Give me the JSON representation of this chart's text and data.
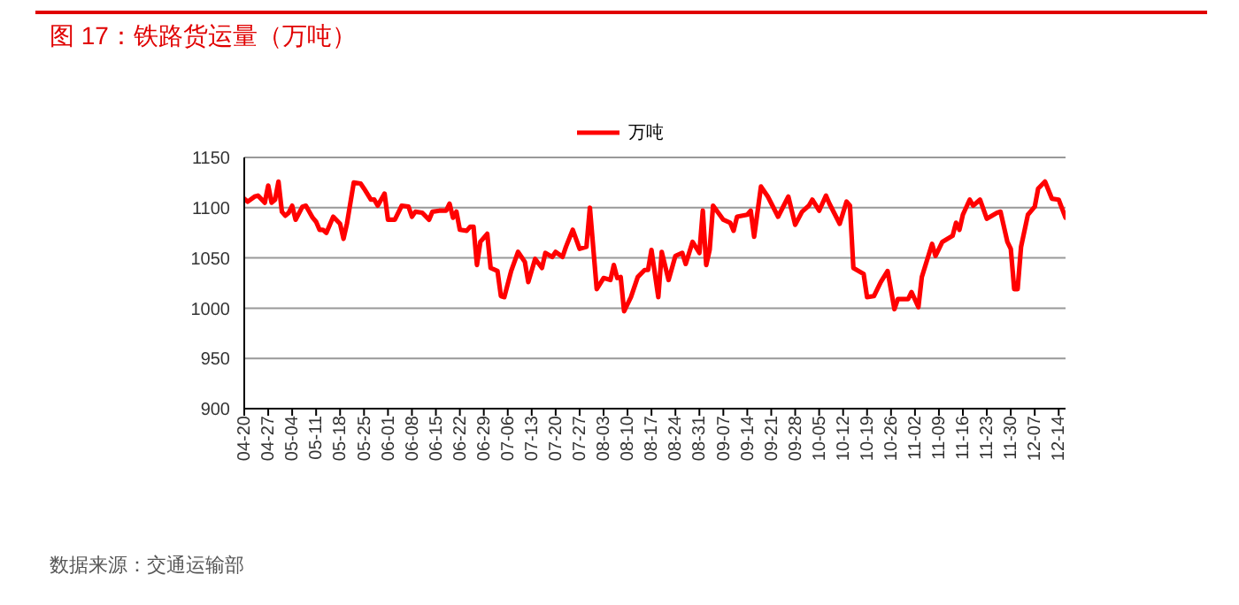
{
  "chart_data": {
    "type": "line",
    "title": "图 17：铁路货运量（万吨）",
    "annotations": [
      "数据来源：交通运输部"
    ],
    "x": [
      "--04-20",
      "--04-21",
      "--04-23",
      "--04-24",
      "--04-26",
      "--04-27",
      "--04-28",
      "--04-29",
      "--04-30",
      "--05-01",
      "--05-02",
      "--05-03",
      "--05-04",
      "--05-05",
      "--05-07",
      "--05-08",
      "--05-10",
      "--05-11",
      "--05-12",
      "--05-13",
      "--05-14",
      "--05-16",
      "--05-18",
      "--05-19",
      "--05-20",
      "--05-22",
      "--05-24",
      "--05-25",
      "--05-27",
      "--05-28",
      "--05-29",
      "--05-31",
      "--06-01",
      "--06-03",
      "--06-05",
      "--06-07",
      "--06-08",
      "--06-09",
      "--06-11",
      "--06-13",
      "--06-14",
      "--06-16",
      "--06-18",
      "--06-19",
      "--06-20",
      "--06-21",
      "--06-22",
      "--06-24",
      "--06-25",
      "--06-26",
      "--06-27",
      "--06-28",
      "--06-30",
      "--07-01",
      "--07-03",
      "--07-04",
      "--07-05",
      "--07-07",
      "--07-09",
      "--07-11",
      "--07-12",
      "--07-14",
      "--07-16",
      "--07-17",
      "--07-19",
      "--07-20",
      "--07-22",
      "--07-23",
      "--07-25",
      "--07-27",
      "--07-29",
      "--07-30",
      "--08-01",
      "--08-03",
      "--08-05",
      "--08-06",
      "--08-07",
      "--08-08",
      "--08-09",
      "--08-11",
      "--08-13",
      "--08-15",
      "--08-16",
      "--08-17",
      "--08-19",
      "--08-20",
      "--08-22",
      "--08-24",
      "--08-26",
      "--08-27",
      "--08-29",
      "--08-31",
      "--09-01",
      "--09-02",
      "--09-03",
      "--09-04",
      "--09-07",
      "--09-09",
      "--09-10",
      "--09-11",
      "--09-14",
      "--09-15",
      "--09-16",
      "--09-18",
      "--09-20",
      "--09-23",
      "--09-26",
      "--09-28",
      "--09-30",
      "--10-02",
      "--10-03",
      "--10-05",
      "--10-07",
      "--10-08",
      "--10-11",
      "--10-13",
      "--10-14",
      "--10-15",
      "--10-18",
      "--10-19",
      "--10-21",
      "--10-23",
      "--10-25",
      "--10-27",
      "--10-28",
      "--10-31",
      "--11-01",
      "--11-03",
      "--11-04",
      "--11-07",
      "--11-08",
      "--11-10",
      "--11-13",
      "--11-14",
      "--11-15",
      "--11-16",
      "--11-18",
      "--11-19",
      "--11-21",
      "--11-23",
      "--11-26",
      "--11-27",
      "--11-29",
      "--11-30",
      "--12-01",
      "--12-02",
      "--12-03",
      "--12-05",
      "--12-07",
      "--12-08",
      "--12-10",
      "--12-12",
      "--12-14",
      "--12-16"
    ],
    "series": [
      {
        "name": "万吨",
        "color": "#ff0000",
        "values": [
          1109,
          1106,
          1111,
          1112,
          1105,
          1122,
          1105,
          1108,
          1126,
          1096,
          1092,
          1095,
          1102,
          1088,
          1101,
          1102,
          1090,
          1086,
          1078,
          1078,
          1075,
          1091,
          1084,
          1069,
          1084,
          1125,
          1124,
          1119,
          1108,
          1108,
          1102,
          1114,
          1088,
          1088,
          1102,
          1101,
          1091,
          1096,
          1095,
          1088,
          1096,
          1097,
          1097,
          1104,
          1090,
          1096,
          1078,
          1077,
          1081,
          1081,
          1043,
          1066,
          1074,
          1040,
          1037,
          1012,
          1011,
          1037,
          1056,
          1046,
          1026,
          1049,
          1040,
          1055,
          1051,
          1056,
          1051,
          1061,
          1078,
          1059,
          1061,
          1100,
          1019,
          1030,
          1028,
          1043,
          1030,
          1031,
          997,
          1011,
          1031,
          1038,
          1038,
          1058,
          1011,
          1056,
          1028,
          1052,
          1055,
          1044,
          1066,
          1055,
          1097,
          1043,
          1058,
          1102,
          1088,
          1085,
          1077,
          1091,
          1093,
          1097,
          1071,
          1121,
          1111,
          1091,
          1111,
          1083,
          1096,
          1102,
          1108,
          1097,
          1112,
          1104,
          1084,
          1106,
          1102,
          1040,
          1034,
          1011,
          1012,
          1026,
          1037,
          999,
          1009,
          1009,
          1016,
          1001,
          1031,
          1064,
          1052,
          1066,
          1072,
          1085,
          1078,
          1093,
          1108,
          1102,
          1108,
          1089,
          1095,
          1096,
          1066,
          1059,
          1019,
          1019,
          1061,
          1093,
          1101,
          1119,
          1126,
          1109,
          1108,
          1090
        ]
      }
    ],
    "xlim": [
      "--04-20",
      "--12-16"
    ],
    "xticks": [
      {
        "value": "--04-20",
        "label": "04-20"
      },
      {
        "value": "--04-27",
        "label": "04-27"
      },
      {
        "value": "--05-04",
        "label": "05-04"
      },
      {
        "value": "--05-11",
        "label": "05-11"
      },
      {
        "value": "--05-18",
        "label": "05-18"
      },
      {
        "value": "--05-25",
        "label": "05-25"
      },
      {
        "value": "--06-01",
        "label": "06-01"
      },
      {
        "value": "--06-08",
        "label": "06-08"
      },
      {
        "value": "--06-15",
        "label": "06-15"
      },
      {
        "value": "--06-22",
        "label": "06-22"
      },
      {
        "value": "--06-29",
        "label": "06-29"
      },
      {
        "value": "--07-06",
        "label": "07-06"
      },
      {
        "value": "--07-13",
        "label": "07-13"
      },
      {
        "value": "--07-20",
        "label": "07-20"
      },
      {
        "value": "--07-27",
        "label": "07-27"
      },
      {
        "value": "--08-03",
        "label": "08-03"
      },
      {
        "value": "--08-10",
        "label": "08-10"
      },
      {
        "value": "--08-17",
        "label": "08-17"
      },
      {
        "value": "--08-24",
        "label": "08-24"
      },
      {
        "value": "--08-31",
        "label": "08-31"
      },
      {
        "value": "--09-07",
        "label": "09-07"
      },
      {
        "value": "--09-14",
        "label": "09-14"
      },
      {
        "value": "--09-21",
        "label": "09-21"
      },
      {
        "value": "--09-28",
        "label": "09-28"
      },
      {
        "value": "--10-05",
        "label": "10-05"
      },
      {
        "value": "--10-12",
        "label": "10-12"
      },
      {
        "value": "--10-19",
        "label": "10-19"
      },
      {
        "value": "--10-26",
        "label": "10-26"
      },
      {
        "value": "--11-02",
        "label": "11-02"
      },
      {
        "value": "--11-09",
        "label": "11-09"
      },
      {
        "value": "--11-16",
        "label": "11-16"
      },
      {
        "value": "--11-23",
        "label": "11-23"
      },
      {
        "value": "--11-30",
        "label": "11-30"
      },
      {
        "value": "--12-07",
        "label": "12-07"
      },
      {
        "value": "--12-14",
        "label": "12-14"
      }
    ],
    "ylim": [
      900,
      1150
    ],
    "yticks": [
      900,
      950,
      1000,
      1050,
      1100,
      1150
    ],
    "grid": "y",
    "legend": "top",
    "marker": "none",
    "line_style": "solid"
  }
}
